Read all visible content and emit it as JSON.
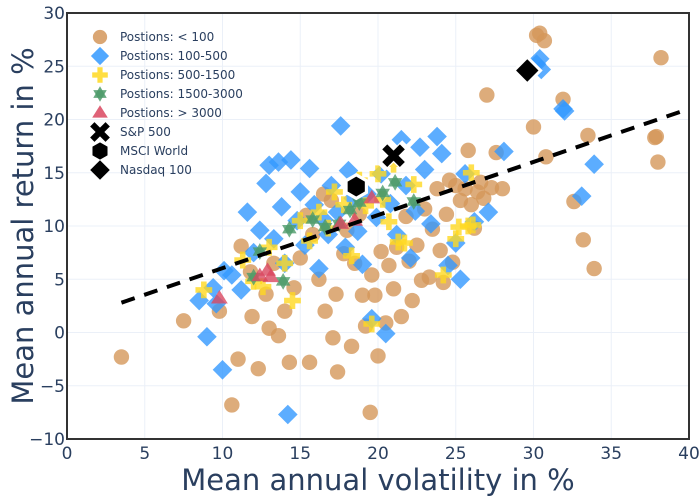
{
  "chart_data": {
    "type": "scatter",
    "title": "",
    "xlabel": "Mean annual volatility in %",
    "ylabel": "Mean annual return in %",
    "xlim": [
      0,
      40
    ],
    "ylim": [
      -10,
      30
    ],
    "xticks": [
      "0",
      "5",
      "10",
      "15",
      "20",
      "25",
      "30",
      "35",
      "40"
    ],
    "yticks": [
      "−10",
      "−5",
      "0",
      "5",
      "10",
      "15",
      "20",
      "25",
      "30"
    ],
    "grid": true,
    "legend_position": "top-left",
    "colors": {
      "lt100": "#d4975a",
      "p100_500": "#3399ff",
      "p500_1500": "#ffd820",
      "p1500_3000": "#4d9b6a",
      "gt3000": "#d9475f",
      "benchmark": "#000000",
      "trend": "#000000"
    },
    "series": [
      {
        "name": "Postions: < 100",
        "key": "lt100",
        "symbol": "circle",
        "points": [
          [
            3.5,
            -2.3
          ],
          [
            7.5,
            1.1
          ],
          [
            9.8,
            2.0
          ],
          [
            10.6,
            -6.8
          ],
          [
            11.0,
            -2.5
          ],
          [
            11.2,
            8.1
          ],
          [
            11.8,
            5.7
          ],
          [
            11.9,
            1.5
          ],
          [
            12.3,
            -3.4
          ],
          [
            12.8,
            3.6
          ],
          [
            13.0,
            0.4
          ],
          [
            13.3,
            6.5
          ],
          [
            13.6,
            -0.3
          ],
          [
            14.0,
            2.0
          ],
          [
            14.3,
            -2.8
          ],
          [
            14.6,
            4.2
          ],
          [
            15.0,
            7.0
          ],
          [
            15.4,
            11.0
          ],
          [
            15.6,
            -2.8
          ],
          [
            15.8,
            9.2
          ],
          [
            16.2,
            5.0
          ],
          [
            16.5,
            13.0
          ],
          [
            16.6,
            2.0
          ],
          [
            17.0,
            12.4
          ],
          [
            17.1,
            -0.5
          ],
          [
            17.3,
            3.6
          ],
          [
            17.4,
            -3.7
          ],
          [
            17.8,
            7.4
          ],
          [
            18.0,
            9.6
          ],
          [
            18.3,
            -1.3
          ],
          [
            18.5,
            6.5
          ],
          [
            18.8,
            11.1
          ],
          [
            19.0,
            3.5
          ],
          [
            19.2,
            0.6
          ],
          [
            19.5,
            -7.5
          ],
          [
            19.6,
            5.4
          ],
          [
            19.8,
            3.5
          ],
          [
            20.0,
            -2.2
          ],
          [
            20.2,
            7.6
          ],
          [
            20.5,
            0.9
          ],
          [
            20.7,
            6.3
          ],
          [
            21.0,
            4.1
          ],
          [
            21.2,
            8.0
          ],
          [
            21.5,
            1.5
          ],
          [
            21.8,
            10.9
          ],
          [
            22.0,
            6.7
          ],
          [
            22.2,
            3.0
          ],
          [
            22.5,
            8.2
          ],
          [
            22.8,
            4.9
          ],
          [
            23.0,
            11.6
          ],
          [
            23.3,
            5.2
          ],
          [
            23.5,
            9.7
          ],
          [
            23.8,
            13.5
          ],
          [
            24.0,
            7.7
          ],
          [
            24.2,
            4.7
          ],
          [
            24.4,
            11.1
          ],
          [
            24.6,
            14.3
          ],
          [
            24.8,
            6.6
          ],
          [
            25.0,
            13.8
          ],
          [
            25.3,
            12.4
          ],
          [
            25.6,
            13.5
          ],
          [
            25.8,
            17.1
          ],
          [
            26.0,
            12.0
          ],
          [
            26.2,
            9.8
          ],
          [
            26.4,
            13.2
          ],
          [
            26.6,
            14.1
          ],
          [
            26.8,
            12.6
          ],
          [
            27.0,
            22.3
          ],
          [
            27.3,
            13.6
          ],
          [
            27.6,
            16.9
          ],
          [
            28.0,
            13.5
          ],
          [
            30.0,
            19.3
          ],
          [
            30.2,
            27.9
          ],
          [
            30.4,
            28.1
          ],
          [
            30.7,
            27.4
          ],
          [
            30.8,
            16.5
          ],
          [
            31.9,
            21.9
          ],
          [
            32.6,
            12.3
          ],
          [
            33.2,
            8.7
          ],
          [
            33.5,
            18.5
          ],
          [
            33.9,
            6.0
          ],
          [
            37.8,
            18.3
          ],
          [
            37.9,
            18.4
          ],
          [
            38.0,
            16.0
          ],
          [
            38.2,
            25.8
          ]
        ]
      },
      {
        "name": "Postions: 100-500",
        "key": "p100_500",
        "symbol": "diamond",
        "points": [
          [
            8.5,
            3.0
          ],
          [
            9.0,
            -0.4
          ],
          [
            9.4,
            4.2
          ],
          [
            9.6,
            2.7
          ],
          [
            10.0,
            -3.5
          ],
          [
            10.1,
            5.8
          ],
          [
            10.6,
            5.4
          ],
          [
            11.2,
            4.0
          ],
          [
            11.6,
            11.3
          ],
          [
            12.0,
            7.5
          ],
          [
            12.4,
            9.6
          ],
          [
            12.8,
            14.0
          ],
          [
            13.0,
            15.7
          ],
          [
            13.3,
            8.8
          ],
          [
            13.6,
            16.0
          ],
          [
            13.8,
            11.8
          ],
          [
            14.0,
            6.5
          ],
          [
            14.2,
            -7.7
          ],
          [
            14.4,
            16.2
          ],
          [
            14.8,
            10.5
          ],
          [
            15.0,
            13.2
          ],
          [
            15.3,
            8.2
          ],
          [
            15.6,
            15.4
          ],
          [
            15.9,
            12.0
          ],
          [
            16.2,
            6.0
          ],
          [
            16.5,
            10.6
          ],
          [
            16.8,
            9.2
          ],
          [
            17.0,
            13.8
          ],
          [
            17.4,
            11.3
          ],
          [
            17.6,
            19.4
          ],
          [
            17.9,
            8.0
          ],
          [
            18.1,
            15.2
          ],
          [
            18.4,
            12.6
          ],
          [
            18.7,
            9.5
          ],
          [
            19.0,
            6.4
          ],
          [
            19.3,
            13.0
          ],
          [
            19.6,
            1.3
          ],
          [
            19.9,
            10.8
          ],
          [
            20.2,
            14.9
          ],
          [
            20.5,
            -0.1
          ],
          [
            20.8,
            12.1
          ],
          [
            21.2,
            9.2
          ],
          [
            21.5,
            18.1
          ],
          [
            21.8,
            13.8
          ],
          [
            22.1,
            7.0
          ],
          [
            22.4,
            11.4
          ],
          [
            22.7,
            17.4
          ],
          [
            23.0,
            15.3
          ],
          [
            23.4,
            10.2
          ],
          [
            23.8,
            18.4
          ],
          [
            24.1,
            16.8
          ],
          [
            24.5,
            6.3
          ],
          [
            25.0,
            8.4
          ],
          [
            25.3,
            5.0
          ],
          [
            25.6,
            14.9
          ],
          [
            26.2,
            10.4
          ],
          [
            27.1,
            11.3
          ],
          [
            28.1,
            17.0
          ],
          [
            30.2,
            25.2
          ],
          [
            30.4,
            25.7
          ],
          [
            30.5,
            24.7
          ],
          [
            31.9,
            21.0
          ],
          [
            32.0,
            20.8
          ],
          [
            33.1,
            12.8
          ],
          [
            33.9,
            15.8
          ]
        ]
      },
      {
        "name": "Postions: 500-1500",
        "key": "p500_1500",
        "symbol": "cross",
        "points": [
          [
            8.8,
            4.0
          ],
          [
            11.3,
            6.8
          ],
          [
            12.0,
            4.8
          ],
          [
            12.6,
            4.3
          ],
          [
            13.0,
            8.0
          ],
          [
            14.0,
            6.5
          ],
          [
            14.5,
            3.0
          ],
          [
            15.0,
            10.5
          ],
          [
            15.6,
            8.6
          ],
          [
            16.2,
            11.3
          ],
          [
            16.8,
            9.8
          ],
          [
            17.2,
            13.2
          ],
          [
            17.8,
            12.0
          ],
          [
            18.3,
            7.2
          ],
          [
            18.8,
            14.3
          ],
          [
            19.2,
            11.9
          ],
          [
            19.6,
            0.8
          ],
          [
            20.0,
            14.9
          ],
          [
            20.3,
            12.5
          ],
          [
            20.7,
            10.4
          ],
          [
            21.0,
            15.8
          ],
          [
            21.3,
            8.5
          ],
          [
            21.7,
            8.4
          ],
          [
            22.3,
            13.9
          ],
          [
            24.2,
            5.4
          ],
          [
            25.0,
            8.8
          ],
          [
            25.8,
            10.0
          ],
          [
            26.1,
            10.1
          ],
          [
            26.0,
            15.0
          ],
          [
            25.2,
            9.9
          ]
        ]
      },
      {
        "name": "Postions: 1500-3000",
        "key": "p1500_3000",
        "symbol": "star",
        "points": [
          [
            12.0,
            5.2
          ],
          [
            12.4,
            7.6
          ],
          [
            14.3,
            9.7
          ],
          [
            15.8,
            10.6
          ],
          [
            16.6,
            9.9
          ],
          [
            17.5,
            10.2
          ],
          [
            18.2,
            11.5
          ],
          [
            18.8,
            12.2
          ],
          [
            20.3,
            13.1
          ],
          [
            21.1,
            14.1
          ],
          [
            22.3,
            12.3
          ],
          [
            13.9,
            4.8
          ]
        ]
      },
      {
        "name": "Postions: > 3000",
        "key": "gt3000",
        "symbol": "triangle-up",
        "points": [
          [
            9.8,
            3.2
          ],
          [
            12.4,
            5.3
          ],
          [
            12.9,
            5.8
          ],
          [
            13.1,
            5.2
          ],
          [
            17.6,
            10.2
          ],
          [
            18.5,
            10.5
          ],
          [
            19.6,
            12.6
          ]
        ]
      },
      {
        "name": "S&P 500",
        "key": "benchmark",
        "symbol": "x",
        "points": [
          [
            21.0,
            16.6
          ]
        ]
      },
      {
        "name": "MSCI World",
        "key": "benchmark",
        "symbol": "hexagon",
        "points": [
          [
            18.6,
            13.7
          ]
        ]
      },
      {
        "name": "Nasdaq 100",
        "key": "benchmark",
        "symbol": "diamond",
        "points": [
          [
            29.6,
            24.6
          ]
        ]
      }
    ],
    "trend_line": {
      "style": "dashed",
      "points": [
        [
          3.5,
          2.8
        ],
        [
          40,
          21.0
        ]
      ]
    }
  }
}
